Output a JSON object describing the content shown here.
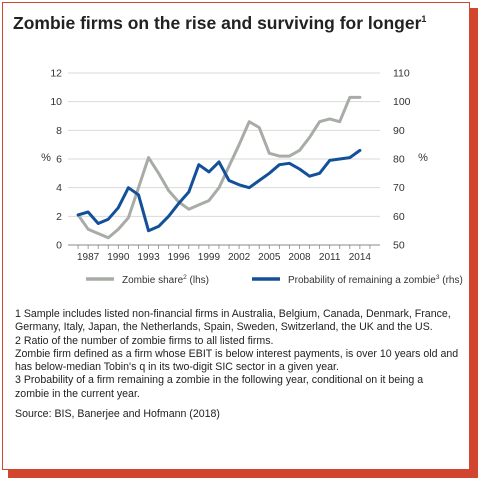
{
  "figure": {
    "title": "Zombie firms on the rise and surviving for longer",
    "title_sup": "1",
    "footnotes": [
      "1 Sample includes listed non-financial firms in Australia, Belgium, Canada, Denmark, France, Germany, Italy, Japan, the Netherlands, Spain, Sweden, Switzerland, the UK and the US.",
      "2 Ratio of the number of zombie firms to all listed firms.",
      "Zombie firm defined as a firm whose EBIT is below interest payments, is over 10 years old and has below-median Tobin's q in its two-digit SIC sector in a given year.",
      "3 Probability of a firm remaining a zombie in the following year, conditional on it being a zombie in the current year."
    ],
    "source": "Source: BIS, Banerjee and Hofmann (2018)"
  },
  "chart_data": {
    "type": "line",
    "left_axis": {
      "label": "%",
      "ylim": [
        0,
        12
      ],
      "ticks": [
        "0",
        "2",
        "4",
        "6",
        "8",
        "10",
        "12"
      ]
    },
    "right_axis": {
      "label": "%",
      "ylim": [
        50,
        110
      ],
      "ticks": [
        "50",
        "60",
        "70",
        "80",
        "90",
        "100",
        "110"
      ]
    },
    "xlim": [
      1985,
      2016
    ],
    "x_ticks": [
      "1987",
      "1990",
      "1993",
      "1996",
      "1999",
      "2002",
      "2005",
      "2008",
      "2011",
      "2014"
    ],
    "grid": true,
    "legend_position": "bottom",
    "series": [
      {
        "name": "Zombie share",
        "name_sup": "2",
        "name_suffix": " (lhs)",
        "axis": "left",
        "color": "#a8aca6",
        "x": [
          1986,
          1987,
          1988,
          1989,
          1990,
          1991,
          1992,
          1993,
          1994,
          1995,
          1996,
          1997,
          1998,
          1999,
          2000,
          2001,
          2002,
          2003,
          2004,
          2005,
          2006,
          2007,
          2008,
          2009,
          2010,
          2011,
          2012,
          2013,
          2014
        ],
        "values": [
          2.1,
          1.1,
          0.8,
          0.5,
          1.1,
          1.9,
          4.0,
          6.1,
          5.0,
          3.8,
          3.0,
          2.5,
          2.8,
          3.1,
          4.0,
          5.5,
          7.0,
          8.6,
          8.2,
          6.4,
          6.2,
          6.2,
          6.6,
          7.5,
          8.6,
          8.8,
          8.6,
          10.3,
          10.3
        ]
      },
      {
        "name": "Probability of remaining a zombie",
        "name_sup": "3",
        "name_suffix": " (rhs)",
        "axis": "right",
        "color": "#13509a",
        "x": [
          1986,
          1987,
          1988,
          1989,
          1990,
          1991,
          1992,
          1993,
          1994,
          1995,
          1996,
          1997,
          1998,
          1999,
          2000,
          2001,
          2002,
          2003,
          2004,
          2005,
          2006,
          2007,
          2008,
          2009,
          2010,
          2011,
          2012,
          2013,
          2014
        ],
        "values": [
          60.5,
          61.5,
          57.5,
          59.0,
          63.0,
          70.0,
          67.5,
          55.0,
          56.5,
          60.0,
          64.5,
          68.5,
          78.0,
          75.5,
          79.0,
          72.5,
          71.0,
          70.0,
          72.5,
          75.0,
          78.0,
          78.5,
          76.5,
          74.0,
          75.0,
          79.5,
          80.0,
          80.5,
          83.0
        ]
      }
    ]
  }
}
